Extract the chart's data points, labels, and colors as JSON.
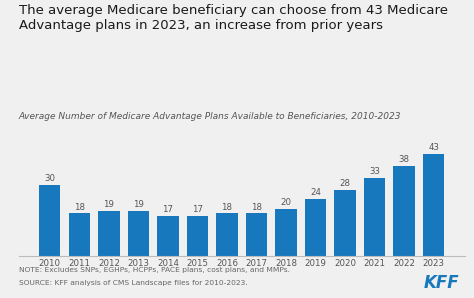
{
  "years": [
    "2010",
    "2011",
    "2012",
    "2013",
    "2014",
    "2015",
    "2016",
    "2017",
    "2018",
    "2019",
    "2020",
    "2021",
    "2022",
    "2023"
  ],
  "values": [
    30,
    18,
    19,
    19,
    17,
    17,
    18,
    18,
    20,
    24,
    28,
    33,
    38,
    43
  ],
  "bar_color": "#1878be",
  "background_color": "#f0f0f0",
  "title_line1": "The average Medicare beneficiary can choose from 43 Medicare",
  "title_line2": "Advantage plans in 2023, an increase from prior years",
  "subtitle": "Average Number of Medicare Advantage Plans Available to Beneficiaries, 2010-2023",
  "note_line1": "NOTE: Excludes SNPs, EGHPs, HCPPs, PACE plans, cost plans, and MMPs.",
  "note_line2": "SOURCE: KFF analysis of CMS Landscape files for 2010-2023.",
  "title_fontsize": 9.5,
  "subtitle_fontsize": 6.5,
  "bar_label_fontsize": 6.2,
  "tick_fontsize": 6.2,
  "note_fontsize": 5.4,
  "kff_fontsize": 12,
  "ylim": [
    0,
    50
  ],
  "kff_color": "#1878be"
}
